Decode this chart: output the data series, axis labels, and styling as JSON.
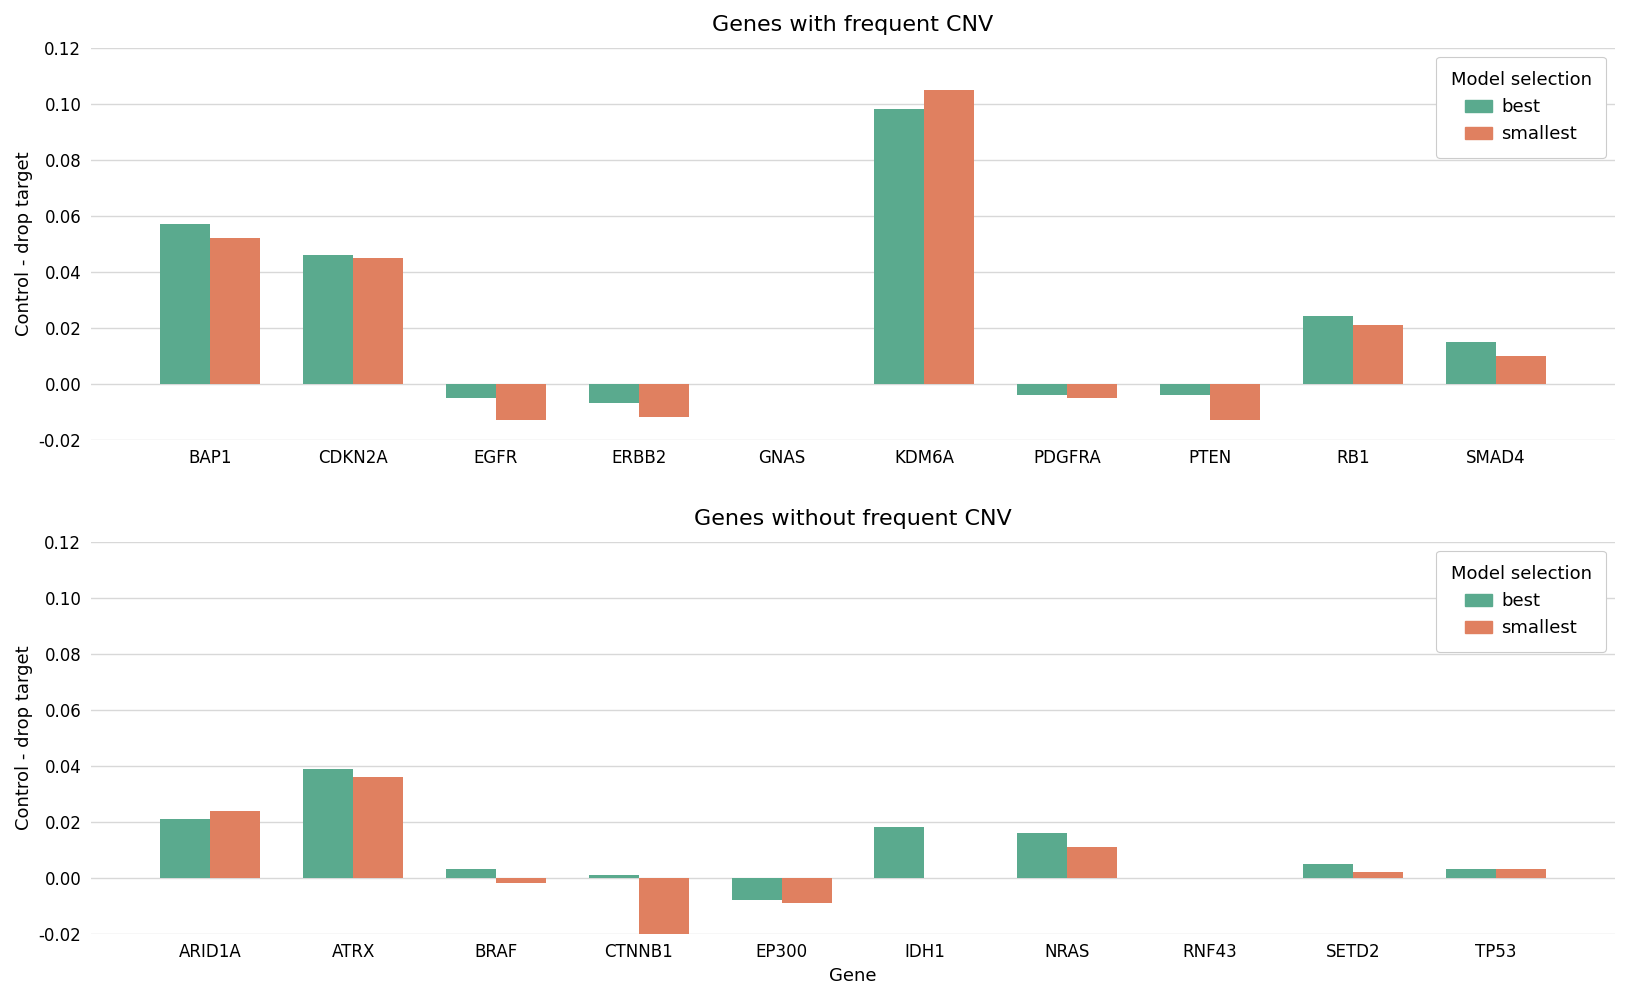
{
  "top_genes": [
    "BAP1",
    "CDKN2A",
    "EGFR",
    "ERBB2",
    "GNAS",
    "KDM6A",
    "PDGFRA",
    "PTEN",
    "RB1",
    "SMAD4"
  ],
  "top_best": [
    0.057,
    0.046,
    -0.005,
    -0.007,
    0.0,
    0.098,
    -0.004,
    -0.004,
    0.024,
    0.015
  ],
  "top_smallest": [
    0.052,
    0.045,
    -0.013,
    -0.012,
    0.0,
    0.105,
    -0.005,
    -0.013,
    0.021,
    0.01
  ],
  "bottom_genes": [
    "ARID1A",
    "ATRX",
    "BRAF",
    "CTNNB1",
    "EP300",
    "IDH1",
    "NRAS",
    "RNF43",
    "SETD2",
    "TP53"
  ],
  "bottom_best": [
    0.021,
    0.039,
    0.003,
    0.001,
    -0.008,
    0.018,
    0.016,
    0.0,
    0.005,
    0.003
  ],
  "bottom_smallest": [
    0.024,
    0.036,
    -0.002,
    -0.022,
    -0.009,
    0.0,
    0.011,
    0.0,
    0.002,
    0.003
  ],
  "color_best": "#5aaa8e",
  "color_smallest": "#e08060",
  "figure_bg": "#ffffff",
  "axes_bg": "#ffffff",
  "grid_color": "#d8d8d8",
  "title_top": "Genes with frequent CNV",
  "title_bottom": "Genes without frequent CNV",
  "ylabel": "Control - drop target",
  "xlabel": "Gene",
  "legend_title": "Model selection",
  "ylim": [
    -0.02,
    0.12
  ],
  "yticks": [
    -0.02,
    0.0,
    0.02,
    0.04,
    0.06,
    0.08,
    0.1,
    0.12
  ],
  "ytick_labels": [
    "-0.02",
    "0.00",
    "0.02",
    "0.04",
    "0.06",
    "0.08",
    "0.10",
    "0.12"
  ],
  "bar_width": 0.35,
  "title_fontsize": 16,
  "label_fontsize": 13,
  "tick_fontsize": 12,
  "legend_fontsize": 13
}
